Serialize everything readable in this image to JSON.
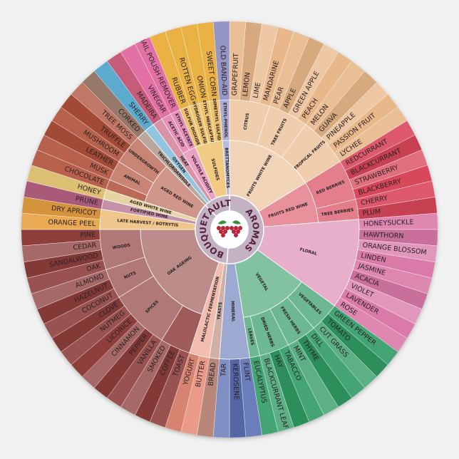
{
  "sections": [
    {
      "label": "AROMAS",
      "groups": [
        {
          "label": "FRUITS WHITE WINE",
          "color": "#e9b88a",
          "subgroups": [
            {
              "label": "CITRUS",
              "leaves": [
                "GRAPEFRUIT",
                "LEMON",
                "LIME",
                "MANDARINE"
              ]
            },
            {
              "label": "TREE FRUITS",
              "leaves": [
                "PEAR",
                "APPLE",
                "GREEN APPLE",
                "PEACH"
              ]
            },
            {
              "label": "TROPICAL FRUITS",
              "leaves": [
                "MELON",
                "GUAVA",
                "PINEAPPLE",
                "PASSION FRUIT",
                "LYCHEE"
              ]
            }
          ]
        },
        {
          "label": "FRUITS RED WINE",
          "color": "#d9475a",
          "subgroups": [
            {
              "label": "RED BERRIES",
              "leaves": [
                "REDCURRANT",
                "BLACKCURRANT",
                "STRAWBERRY",
                "BLACKBERRY"
              ]
            },
            {
              "label": "TREE BERRIES",
              "leaves": [
                "CHERRY",
                "PLUM"
              ]
            }
          ]
        },
        {
          "label": "FLORAL",
          "color": "#d97aa8",
          "subgroups": [
            {
              "leaves": [
                "HONEYSUCKLE",
                "HAWTHORN",
                "ORANGE BLOSSOM",
                "LINDEN",
                "JASMINE",
                "ACACIA",
                "VIOLET",
                "LAVENDER",
                "ROSE"
              ]
            }
          ]
        },
        {
          "label": "VEGETAL",
          "color": "#2f9a63",
          "subgroups": [
            {
              "label": "VEGETABLES",
              "leaves": [
                "GREEN PEPPER",
                "TOMATO",
                "CUT GRASS"
              ]
            },
            {
              "label": "FRESH HERBS",
              "leaves": [
                "DILL",
                "THYME",
                "MINT"
              ]
            },
            {
              "label": "DRIED HERBS",
              "leaves": [
                "TABACCO",
                "HAY",
                "BLACKCURRANT LEAF"
              ]
            },
            {
              "label": "LEAVES",
              "leaves": [
                "EUCALYPTUS"
              ]
            }
          ]
        },
        {
          "label": "MINERAL",
          "color": "#5b6fb2",
          "subgroups": [
            {
              "leaves": [
                "FLINT",
                "KEROSENE",
                "TAR"
              ]
            }
          ]
        }
      ]
    },
    {
      "label": "BOUQUET",
      "groups": [
        {
          "label": "YEASTS",
          "color": "#b07a6a",
          "subgroups": [
            {
              "leaves": [
                "BREAD"
              ]
            }
          ]
        },
        {
          "label": "MALOLACTIC FERMENTATION",
          "color": "#e98f7a",
          "subgroups": [
            {
              "leaves": [
                "BUTTER",
                "YOGURT"
              ]
            }
          ]
        },
        {
          "label": "OAK AGEING",
          "color": "#8e3f3c",
          "subgroups": [
            {
              "leaves": [
                "TOAST",
                "COFFEE",
                "SMOKED"
              ]
            },
            {
              "label": "SPICES",
              "leaves": [
                "VANILLA",
                "PEPPER",
                "CINNAMON",
                "LICORICE",
                "NUTMEG",
                "CLOVE"
              ]
            },
            {
              "label": "NUTS",
              "leaves": [
                "COCONUT",
                "HAZELNUT",
                "ALMOND"
              ]
            },
            {
              "label": "WOODS",
              "leaves": [
                "OAK",
                "SANDALWOOD",
                "CEDAR",
                "PINE"
              ]
            }
          ]
        },
        {
          "label": "LATE HARVEST / BOTRYTIS",
          "color": "#e8a040",
          "subgroups": [
            {
              "leaves": [
                "ORANGE PEEL",
                "DRY APRICOT"
              ]
            }
          ]
        },
        {
          "label": "FORTIFIED WINE",
          "color": "#a0486a",
          "subgroups": [
            {
              "leaves": [
                "PRUNE"
              ]
            }
          ]
        },
        {
          "label": "AGED WHITE WINE",
          "color": "#d9b865",
          "subgroups": [
            {
              "leaves": [
                "HONEY"
              ]
            }
          ]
        },
        {
          "label": "AGED RED WINE",
          "color": "#b0503a",
          "subgroups": [
            {
              "leaves": [
                "CHOCOLATE"
              ]
            },
            {
              "label": "ANIMAL",
              "leaves": [
                "MUSK",
                "LEATHER"
              ]
            },
            {
              "label": "UNDERGROWTH",
              "leaves": [
                "MUSHROOM",
                "TRUFFLE",
                "TREE MOSS"
              ]
            }
          ]
        }
      ]
    },
    {
      "label": "FAULTS",
      "groups": [
        {
          "label": "TRICHLOROANISOLE",
          "color": "#8a6a5a",
          "subgroups": [
            {
              "leaves": [
                "CORKED"
              ]
            }
          ]
        },
        {
          "label": "OXYGEN",
          "color": "#4aa0c8",
          "subgroups": [
            {
              "leaves": [
                "SHERRY"
              ]
            }
          ]
        },
        {
          "label": "HEAT",
          "color": "#c04a6a",
          "subgroups": [
            {
              "leaves": [
                "MADEIRA"
              ]
            }
          ]
        },
        {
          "label": "VOLATILE ACIDITY",
          "color": "#e0609a",
          "subgroups": [
            {
              "label": "ACETIC ACID",
              "leaves": [
                "VINEGAR"
              ]
            },
            {
              "label": "ETHYL ACETATE",
              "leaves": [
                "NAIL POLISH REMOVER"
              ]
            }
          ]
        },
        {
          "label": "SULFIDES",
          "color": "#e8a830",
          "subgroups": [
            {
              "label": "SULFUR DIOXIDE",
              "leaves": [
                "RUBBER"
              ]
            },
            {
              "label": "HYDROGEN SULFIDE",
              "leaves": [
                "ROTTEN EGG"
              ]
            },
            {
              "label": "ETHYL MERCAPTAN",
              "leaves": [
                "ONION"
              ]
            },
            {
              "label": "DIMETHYL SULFIDE",
              "leaves": [
                "SWEET CORN"
              ]
            }
          ]
        },
        {
          "label": "BRETTANOMYCES",
          "color": "#8a8ac0",
          "subgroups": [
            {
              "label": "ETHYL-PHENOL",
              "leaves": [
                "OLD BAND-AID"
              ]
            }
          ]
        }
      ]
    }
  ]
}
